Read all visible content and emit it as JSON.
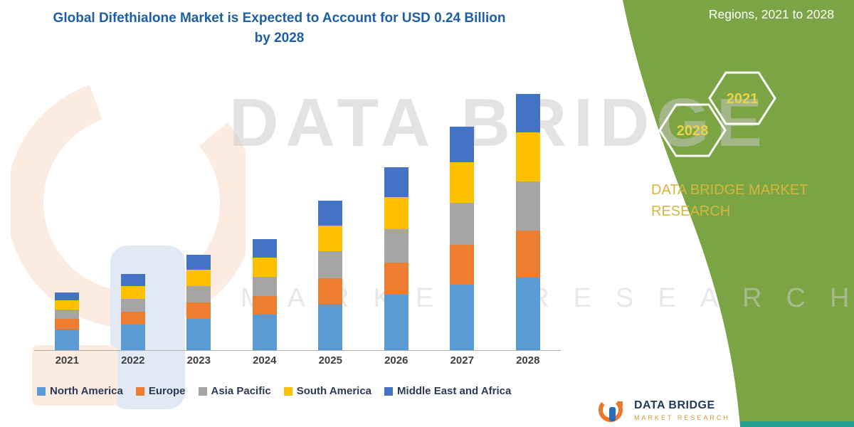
{
  "chart_data": {
    "type": "bar",
    "stacked": true,
    "title": "Global Difethialone Market is Expected to Account for USD 0.24 Billion by 2028",
    "unit": "USD Billion",
    "categories": [
      "2021",
      "2022",
      "2023",
      "2024",
      "2025",
      "2026",
      "2027",
      "2028"
    ],
    "series": [
      {
        "name": "North America",
        "color": "#5B9BD5",
        "values": [
          0.019,
          0.024,
          0.029,
          0.033,
          0.043,
          0.052,
          0.061,
          0.068
        ]
      },
      {
        "name": "Europe",
        "color": "#ED7D31",
        "values": [
          0.01,
          0.012,
          0.015,
          0.017,
          0.024,
          0.03,
          0.037,
          0.044
        ]
      },
      {
        "name": "Asia Pacific",
        "color": "#A5A5A5",
        "values": [
          0.009,
          0.012,
          0.015,
          0.018,
          0.025,
          0.031,
          0.039,
          0.046
        ]
      },
      {
        "name": "South America",
        "color": "#FFC000",
        "values": [
          0.009,
          0.012,
          0.015,
          0.018,
          0.024,
          0.03,
          0.038,
          0.046
        ]
      },
      {
        "name": "Middle East and Africa",
        "color": "#4472C4",
        "values": [
          0.007,
          0.011,
          0.014,
          0.017,
          0.023,
          0.028,
          0.033,
          0.036
        ]
      }
    ],
    "totals": [
      0.054,
      0.071,
      0.088,
      0.103,
      0.139,
      0.171,
      0.208,
      0.24
    ],
    "ylim": [
      0,
      0.25
    ],
    "grid": false,
    "legend_position": "bottom"
  },
  "right_panel": {
    "caption": "Regions, 2021 to 2028",
    "hex_back_year": "2028",
    "hex_front_year": "2021",
    "brand_text": "DATA BRIDGE MARKET RESEARCH"
  },
  "watermark": {
    "line1": "DATA BRIDGE",
    "line2": "MARKET RESEARCH"
  },
  "footer_logo": {
    "brand": "DATA BRIDGE",
    "sub_brand": "MARKET RESEARCH"
  },
  "colors": {
    "panel_green": "#7BA444",
    "title_blue": "#1D5FA6",
    "brand_gold": "#D4B73C",
    "hex_year_yellow": "#E8D44A",
    "teal_strip": "#23A18E"
  }
}
